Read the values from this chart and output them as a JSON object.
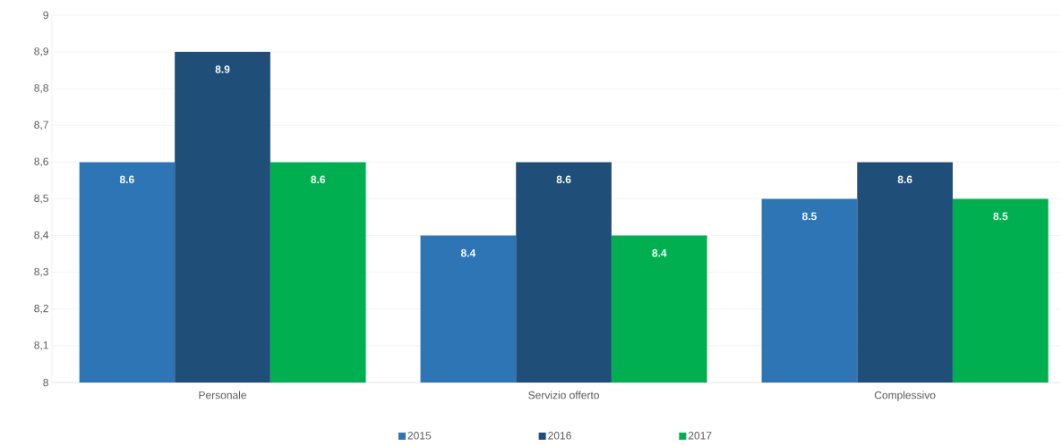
{
  "chart_data": {
    "type": "bar",
    "categories": [
      "Personale",
      "Servizio offerto",
      "Complessivo"
    ],
    "series": [
      {
        "name": "2015",
        "color": "#2e75b6",
        "values": [
          8.6,
          8.4,
          8.5
        ]
      },
      {
        "name": "2016",
        "color": "#1f4e79",
        "values": [
          8.9,
          8.6,
          8.6
        ]
      },
      {
        "name": "2017",
        "color": "#00b050",
        "values": [
          8.6,
          8.4,
          8.5
        ]
      }
    ],
    "ylim": [
      8,
      9
    ],
    "yticks": [
      8,
      {
        "value": 8.1,
        "label": "8,1"
      },
      {
        "value": 8.2,
        "label": "8,2"
      },
      {
        "value": 8.3,
        "label": "8,3"
      },
      {
        "value": 8.4,
        "label": "8,4"
      },
      {
        "value": 8.5,
        "label": "8,5"
      },
      {
        "value": 8.6,
        "label": "8,6"
      },
      {
        "value": 8.7,
        "label": "8,7"
      },
      {
        "value": 8.8,
        "label": "8,8"
      },
      {
        "value": 8.9,
        "label": "8,9"
      },
      9
    ],
    "grid": "y",
    "legend": "bottom",
    "data_labels": true
  }
}
